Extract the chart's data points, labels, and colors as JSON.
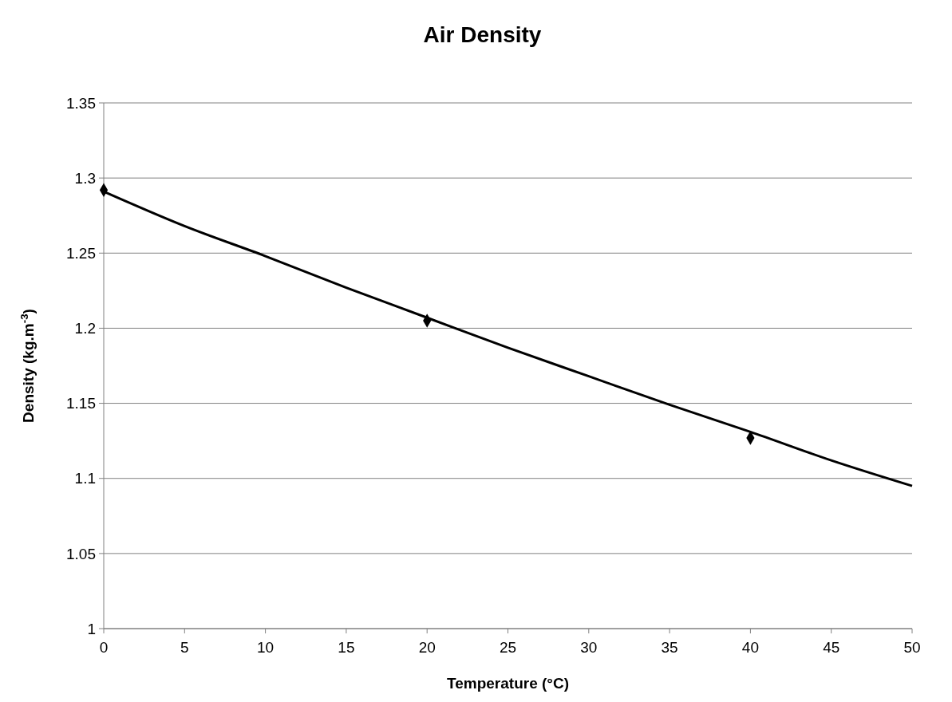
{
  "chart_data": {
    "type": "line",
    "title": "Air Density",
    "xlabel": "Temperature (°C)",
    "ylabel": "Density (kg.m$^{-3}$)",
    "xlim": [
      0,
      50
    ],
    "xticks": [
      0,
      5,
      10,
      15,
      20,
      25,
      30,
      35,
      40,
      45,
      50
    ],
    "ylim": [
      1,
      1.35
    ],
    "yticks": [
      1,
      1.05,
      1.1,
      1.15,
      1.2,
      1.25,
      1.3,
      1.35
    ],
    "grid": "y",
    "series": [
      {
        "type": "line",
        "color": "#000000",
        "marker": "none",
        "x": [
          0,
          5,
          10,
          15,
          20,
          25,
          30,
          35,
          40,
          45,
          50
        ],
        "values": [
          1.291,
          1.268,
          1.248,
          1.227,
          1.207,
          1.187,
          1.168,
          1.149,
          1.131,
          1.112,
          1.095
        ]
      },
      {
        "type": "scatter",
        "color": "#000000",
        "marker": "diamond",
        "x": [
          0,
          20,
          40
        ],
        "values": [
          1.292,
          1.205,
          1.127
        ]
      }
    ]
  }
}
